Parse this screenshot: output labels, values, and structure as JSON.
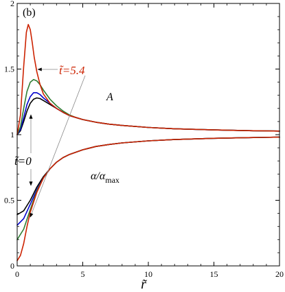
{
  "chart_data": {
    "type": "line",
    "panel_label": "(b)",
    "xlabel": "r̃",
    "ylabel": "",
    "xlim": [
      0,
      20
    ],
    "ylim": [
      0,
      2
    ],
    "x_ticks": [
      0,
      5,
      10,
      15,
      20
    ],
    "y_ticks": [
      0,
      0.5,
      1,
      1.5,
      2
    ],
    "x_tick_labels": [
      "0",
      "5",
      "10",
      "15",
      "20"
    ],
    "y_tick_labels": [
      "0",
      "0.5",
      "1",
      "1.5",
      "2"
    ],
    "grid": false,
    "legend": "none",
    "annotations": {
      "A": "A",
      "alpha_prefix": "α/α",
      "alpha_subscript": "max",
      "t_final": "t̃=5.4",
      "t_initial": "t̃=0"
    },
    "series": [
      {
        "group": "A",
        "color": "#000000",
        "x": [
          0,
          0.25,
          0.5,
          0.75,
          1.0,
          1.25,
          1.5,
          1.75,
          2.0,
          2.5,
          3.0,
          3.5,
          4.0,
          4.5,
          5.0,
          6.0,
          7.0,
          8.0,
          10.0,
          12.0,
          15.0,
          18.0,
          20.0
        ],
        "values": [
          1.0,
          1.03,
          1.1,
          1.18,
          1.24,
          1.27,
          1.28,
          1.275,
          1.26,
          1.23,
          1.2,
          1.17,
          1.145,
          1.13,
          1.115,
          1.095,
          1.08,
          1.07,
          1.055,
          1.045,
          1.036,
          1.03,
          1.027
        ]
      },
      {
        "group": "A",
        "color": "#0000cc",
        "x": [
          0,
          0.25,
          0.5,
          0.75,
          1.0,
          1.25,
          1.5,
          1.75,
          2.0,
          2.5,
          3.0,
          3.5,
          4.0,
          4.5,
          5.0,
          6.0,
          7.0,
          8.0,
          10.0,
          12.0,
          15.0,
          18.0,
          20.0
        ],
        "values": [
          1.0,
          1.04,
          1.13,
          1.23,
          1.29,
          1.32,
          1.32,
          1.305,
          1.28,
          1.24,
          1.2,
          1.17,
          1.145,
          1.13,
          1.115,
          1.095,
          1.08,
          1.07,
          1.055,
          1.045,
          1.036,
          1.03,
          1.027
        ]
      },
      {
        "group": "A",
        "color": "#2e7d32",
        "x": [
          0,
          0.25,
          0.5,
          0.75,
          1.0,
          1.25,
          1.5,
          1.75,
          2.0,
          2.5,
          3.0,
          3.5,
          4.0,
          4.5,
          5.0,
          6.0,
          7.0,
          8.0,
          10.0,
          12.0,
          15.0,
          18.0,
          20.0
        ],
        "values": [
          1.0,
          1.06,
          1.2,
          1.33,
          1.4,
          1.42,
          1.41,
          1.38,
          1.34,
          1.27,
          1.22,
          1.18,
          1.15,
          1.13,
          1.115,
          1.095,
          1.08,
          1.07,
          1.055,
          1.045,
          1.036,
          1.03,
          1.027
        ]
      },
      {
        "group": "A",
        "color": "#cc2200",
        "x": [
          0,
          0.25,
          0.5,
          0.7,
          0.85,
          1.0,
          1.15,
          1.3,
          1.5,
          1.75,
          2.0,
          2.5,
          3.0,
          3.5,
          4.0,
          4.5,
          5.0,
          6.0,
          7.0,
          8.0,
          10.0,
          12.0,
          15.0,
          18.0,
          20.0
        ],
        "values": [
          1.0,
          1.15,
          1.52,
          1.78,
          1.84,
          1.8,
          1.7,
          1.59,
          1.48,
          1.38,
          1.31,
          1.24,
          1.2,
          1.17,
          1.145,
          1.13,
          1.115,
          1.095,
          1.08,
          1.07,
          1.055,
          1.045,
          1.036,
          1.03,
          1.027
        ]
      },
      {
        "group": "alpha",
        "color": "#000000",
        "x": [
          0,
          0.5,
          1.0,
          1.5,
          2.0,
          2.5,
          3.0,
          3.5,
          4.0,
          5.0,
          6.0,
          7.0,
          8.0,
          10.0,
          12.0,
          15.0,
          18.0,
          20.0
        ],
        "values": [
          0.39,
          0.42,
          0.5,
          0.6,
          0.68,
          0.74,
          0.79,
          0.825,
          0.85,
          0.885,
          0.91,
          0.925,
          0.937,
          0.953,
          0.963,
          0.972,
          0.978,
          0.981
        ]
      },
      {
        "group": "alpha",
        "color": "#0000cc",
        "x": [
          0,
          0.5,
          1.0,
          1.5,
          2.0,
          2.5,
          3.0,
          3.5,
          4.0,
          5.0,
          6.0,
          7.0,
          8.0,
          10.0,
          12.0,
          15.0,
          18.0,
          20.0
        ],
        "values": [
          0.31,
          0.36,
          0.47,
          0.58,
          0.67,
          0.74,
          0.79,
          0.825,
          0.85,
          0.885,
          0.91,
          0.925,
          0.937,
          0.953,
          0.963,
          0.972,
          0.978,
          0.981
        ]
      },
      {
        "group": "alpha",
        "color": "#2e7d32",
        "x": [
          0,
          0.5,
          1.0,
          1.5,
          2.0,
          2.5,
          3.0,
          3.5,
          4.0,
          5.0,
          6.0,
          7.0,
          8.0,
          10.0,
          12.0,
          15.0,
          18.0,
          20.0
        ],
        "values": [
          0.2,
          0.28,
          0.43,
          0.57,
          0.67,
          0.74,
          0.79,
          0.825,
          0.85,
          0.885,
          0.91,
          0.925,
          0.937,
          0.953,
          0.963,
          0.972,
          0.978,
          0.981
        ]
      },
      {
        "group": "alpha",
        "color": "#cc2200",
        "x": [
          0,
          0.25,
          0.5,
          0.75,
          1.0,
          1.5,
          2.0,
          2.5,
          3.0,
          3.5,
          4.0,
          5.0,
          6.0,
          7.0,
          8.0,
          10.0,
          12.0,
          15.0,
          18.0,
          20.0
        ],
        "values": [
          0.04,
          0.08,
          0.17,
          0.3,
          0.41,
          0.56,
          0.67,
          0.74,
          0.79,
          0.825,
          0.85,
          0.885,
          0.91,
          0.925,
          0.937,
          0.953,
          0.963,
          0.972,
          0.978,
          0.981
        ]
      }
    ]
  }
}
